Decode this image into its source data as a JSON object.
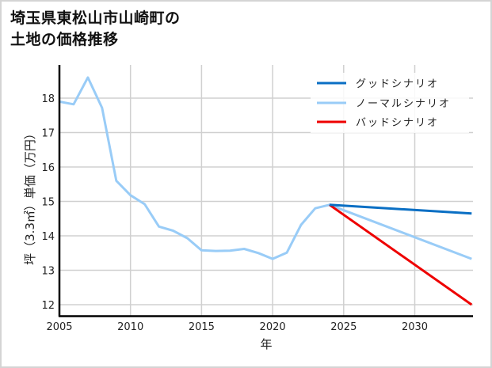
{
  "title_line1": "埼玉県東松山市山崎町の",
  "title_line2": "土地の価格推移",
  "chart_data": {
    "type": "line",
    "title": "埼玉県東松山市山崎町の土地の価格推移",
    "xlabel": "年",
    "ylabel": "坪（3.3㎡）単価（万円）",
    "xlim": [
      2005,
      2034
    ],
    "ylim": [
      11.7,
      18.9
    ],
    "xticks": [
      2005,
      2010,
      2015,
      2020,
      2025,
      2030
    ],
    "yticks": [
      12,
      13,
      14,
      15,
      16,
      17,
      18
    ],
    "grid": true,
    "legend_position": "upper right",
    "series": [
      {
        "name": "グッドシナリオ",
        "color": "#0a6fc4",
        "x": [
          2024,
          2034
        ],
        "y": [
          14.9,
          14.65
        ]
      },
      {
        "name": "ノーマルシナリオ",
        "color": "#99ccf7",
        "x": [
          2005,
          2006,
          2007,
          2008,
          2009,
          2010,
          2011,
          2012,
          2013,
          2014,
          2015,
          2016,
          2017,
          2018,
          2019,
          2020,
          2021,
          2022,
          2023,
          2024,
          2034
        ],
        "y": [
          17.9,
          17.82,
          18.6,
          17.72,
          15.6,
          15.18,
          14.92,
          14.27,
          14.15,
          13.93,
          13.58,
          13.56,
          13.57,
          13.62,
          13.5,
          13.33,
          13.51,
          14.32,
          14.8,
          14.9,
          13.33
        ]
      },
      {
        "name": "バッドシナリオ",
        "color": "#ee0000",
        "x": [
          2024,
          2034
        ],
        "y": [
          14.9,
          12.0
        ]
      }
    ]
  },
  "axis": {
    "x_ticks": [
      "2005",
      "2010",
      "2015",
      "2020",
      "2025",
      "2030"
    ],
    "y_ticks": [
      "12",
      "13",
      "14",
      "15",
      "16",
      "17",
      "18"
    ],
    "xlabel": "年",
    "ylabel": "坪（3.3㎡）単価（万円）"
  },
  "legend": [
    {
      "label": "グッドシナリオ",
      "color": "#0a6fc4"
    },
    {
      "label": "ノーマルシナリオ",
      "color": "#99ccf7"
    },
    {
      "label": "バッドシナリオ",
      "color": "#ee0000"
    }
  ]
}
